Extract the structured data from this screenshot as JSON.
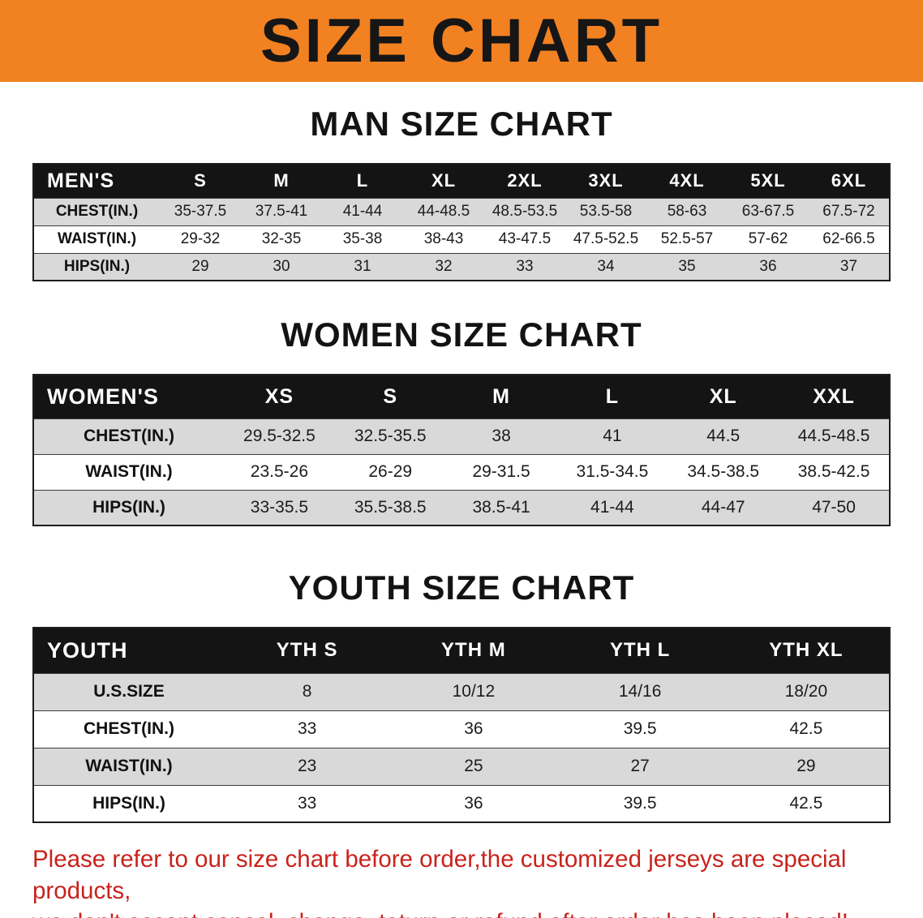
{
  "banner": {
    "title": "SIZE CHART"
  },
  "colors": {
    "banner_bg": "#f28122",
    "table_header_bg": "#141414",
    "row_alt_bg": "#d9d9d9",
    "notice_color": "#c8231c"
  },
  "sections": [
    {
      "id": "men",
      "heading": "MAN SIZE CHART",
      "table": {
        "header": [
          "MEN'S",
          "S",
          "M",
          "L",
          "XL",
          "2XL",
          "3XL",
          "4XL",
          "5XL",
          "6XL"
        ],
        "rows": [
          {
            "label": "CHEST(IN.)",
            "values": [
              "35-37.5",
              "37.5-41",
              "41-44",
              "44-48.5",
              "48.5-53.5",
              "53.5-58",
              "58-63",
              "63-67.5",
              "67.5-72"
            ]
          },
          {
            "label": "WAIST(IN.)",
            "values": [
              "29-32",
              "32-35",
              "35-38",
              "38-43",
              "43-47.5",
              "47.5-52.5",
              "52.5-57",
              "57-62",
              "62-66.5"
            ]
          },
          {
            "label": "HIPS(IN.)",
            "values": [
              "29",
              "30",
              "31",
              "32",
              "33",
              "34",
              "35",
              "36",
              "37"
            ]
          }
        ]
      }
    },
    {
      "id": "women",
      "heading": "WOMEN SIZE CHART",
      "table": {
        "header": [
          "WOMEN'S",
          "XS",
          "S",
          "M",
          "L",
          "XL",
          "XXL"
        ],
        "rows": [
          {
            "label": "CHEST(IN.)",
            "values": [
              "29.5-32.5",
              "32.5-35.5",
              "38",
              "41",
              "44.5",
              "44.5-48.5"
            ]
          },
          {
            "label": "WAIST(IN.)",
            "values": [
              "23.5-26",
              "26-29",
              "29-31.5",
              "31.5-34.5",
              "34.5-38.5",
              "38.5-42.5"
            ]
          },
          {
            "label": "HIPS(IN.)",
            "values": [
              "33-35.5",
              "35.5-38.5",
              "38.5-41",
              "41-44",
              "44-47",
              "47-50"
            ]
          }
        ]
      }
    },
    {
      "id": "youth",
      "heading": "YOUTH SIZE CHART",
      "table": {
        "header": [
          "YOUTH",
          "YTH S",
          "YTH M",
          "YTH L",
          "YTH XL"
        ],
        "rows": [
          {
            "label": "U.S.SIZE",
            "values": [
              "8",
              "10/12",
              "14/16",
              "18/20"
            ]
          },
          {
            "label": "CHEST(IN.)",
            "values": [
              "33",
              "36",
              "39.5",
              "42.5"
            ]
          },
          {
            "label": "WAIST(IN.)",
            "values": [
              "23",
              "25",
              "27",
              "29"
            ]
          },
          {
            "label": "HIPS(IN.)",
            "values": [
              "33",
              "36",
              "39.5",
              "42.5"
            ]
          }
        ]
      }
    }
  ],
  "footer": {
    "line1": "Please refer to our size chart before order,the customized jerseys are special products,",
    "line2": "we don't accept cancel, change, teturn or refund after order has been placed!"
  }
}
